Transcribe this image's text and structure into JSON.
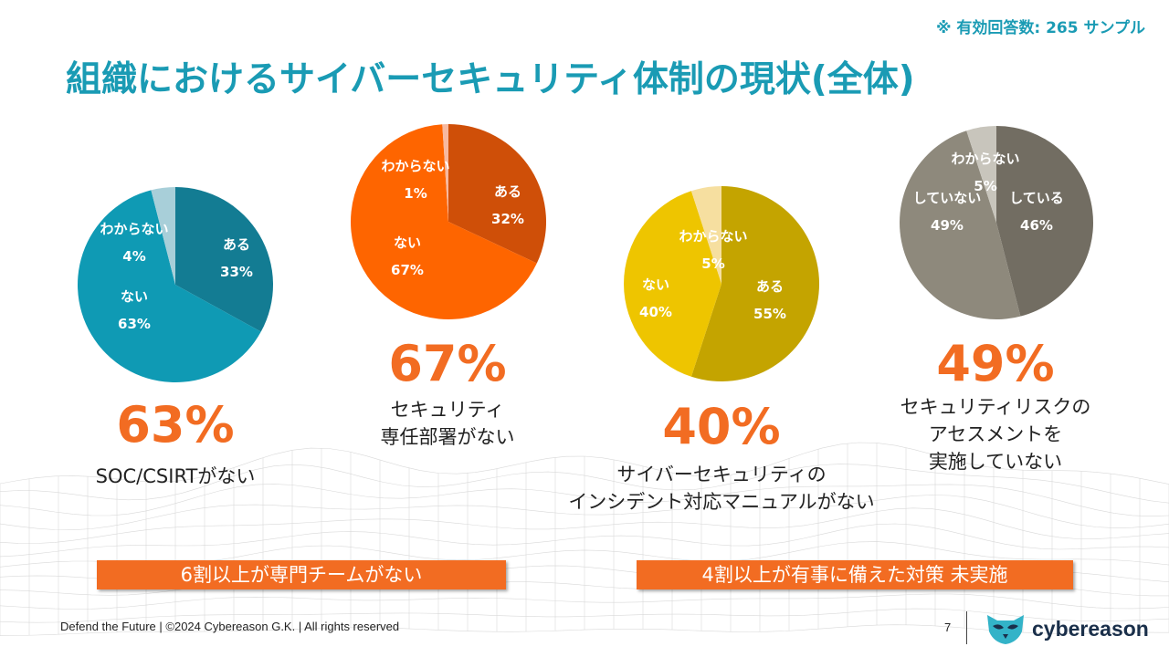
{
  "header": {
    "note": "※ 有効回答数: 265 サンプル",
    "title": "組織におけるサイバーセキュリティ体制の現状(全体)"
  },
  "chart_data": [
    {
      "type": "pie",
      "slices": [
        {
          "label": "ある",
          "value": 33,
          "pct": "33%",
          "color": "#137c93"
        },
        {
          "label": "ない",
          "value": 63,
          "pct": "63%",
          "color": "#0f9ab4"
        },
        {
          "label": "わからない",
          "value": 4,
          "pct": "4%",
          "color": "#a8cfd9"
        }
      ],
      "headline": "63%",
      "caption": [
        "SOC/CSIRTがない"
      ]
    },
    {
      "type": "pie",
      "slices": [
        {
          "label": "ある",
          "value": 32,
          "pct": "32%",
          "color": "#cf4f08"
        },
        {
          "label": "ない",
          "value": 67,
          "pct": "67%",
          "color": "#fe6500"
        },
        {
          "label": "わからない",
          "value": 1,
          "pct": "1%",
          "color": "#f7b9a0"
        }
      ],
      "headline": "67%",
      "caption": [
        "セキュリティ",
        "専任部署がない"
      ]
    },
    {
      "type": "pie",
      "slices": [
        {
          "label": "ある",
          "value": 55,
          "pct": "55%",
          "color": "#c4a400"
        },
        {
          "label": "ない",
          "value": 40,
          "pct": "40%",
          "color": "#eec500"
        },
        {
          "label": "わからない",
          "value": 5,
          "pct": "5%",
          "color": "#f6dfa0"
        }
      ],
      "headline": "40%",
      "caption": [
        "サイバーセキュリティの",
        "インシデント対応マニュアルがない"
      ]
    },
    {
      "type": "pie",
      "slices": [
        {
          "label": "している",
          "value": 46,
          "pct": "46%",
          "color": "#726d62"
        },
        {
          "label": "していない",
          "value": 49,
          "pct": "49%",
          "color": "#8e897c"
        },
        {
          "label": "わからない",
          "value": 5,
          "pct": "5%",
          "color": "#c8c5bc"
        }
      ],
      "headline": "49%",
      "caption": [
        "セキュリティリスクの",
        "アセスメントを",
        "実施していない"
      ]
    }
  ],
  "banners": [
    "6割以上が専門チームがない",
    "4割以上が有事に備えた対策 未実施"
  ],
  "footer": {
    "copyright": "Defend the Future | ©2024 Cybereason G.K. | All rights reserved",
    "page": "7",
    "logo_text": "cybereason",
    "logo_icon": "owl-icon",
    "accent": "#f26c22",
    "title_color": "#1a9bb4"
  }
}
